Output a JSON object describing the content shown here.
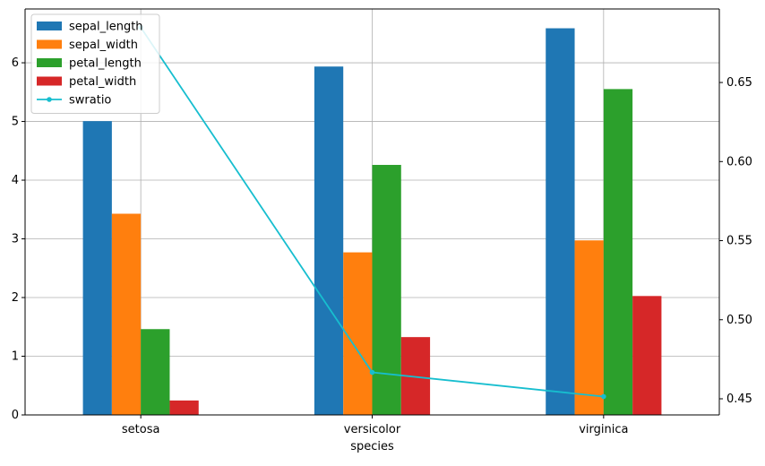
{
  "chart_data": {
    "type": "bar",
    "title": "",
    "xlabel": "species",
    "ylabel": "",
    "y2label": "",
    "categories": [
      "setosa",
      "versicolor",
      "virginica"
    ],
    "series": [
      {
        "name": "sepal_length",
        "type": "bar",
        "axis": "left",
        "color": "#1f77b4",
        "values": [
          5.006,
          5.936,
          6.588
        ]
      },
      {
        "name": "sepal_width",
        "type": "bar",
        "axis": "left",
        "color": "#ff7f0e",
        "values": [
          3.428,
          2.77,
          2.974
        ]
      },
      {
        "name": "petal_length",
        "type": "bar",
        "axis": "left",
        "color": "#2ca02c",
        "values": [
          1.462,
          4.26,
          5.552
        ]
      },
      {
        "name": "petal_width",
        "type": "bar",
        "axis": "left",
        "color": "#d62728",
        "values": [
          0.246,
          1.326,
          2.026
        ]
      },
      {
        "name": "swratio",
        "type": "line",
        "axis": "right",
        "color": "#17becf",
        "marker": "dot",
        "values": [
          0.6848,
          0.4667,
          0.4514
        ]
      }
    ],
    "ylim": [
      0,
      6.917
    ],
    "y2lim": [
      0.4398,
      0.6965
    ],
    "yticks": [
      "0",
      "1",
      "2",
      "3",
      "4",
      "5",
      "6"
    ],
    "y2ticks": [
      "0.45",
      "0.50",
      "0.55",
      "0.60",
      "0.65"
    ],
    "grid": true,
    "legend_position": "top-left"
  }
}
